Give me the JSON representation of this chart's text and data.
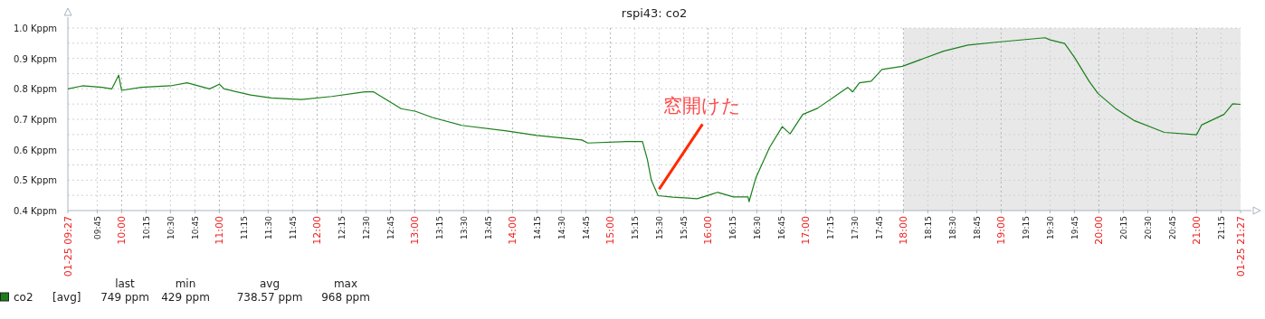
{
  "chart_data": {
    "type": "line",
    "title": "rspi43: co2",
    "x": [
      9.45,
      9.6,
      9.8,
      9.9,
      9.97,
      10.0,
      10.2,
      10.5,
      10.67,
      10.9,
      11.0,
      11.05,
      11.32,
      11.53,
      11.84,
      12.15,
      12.49,
      12.58,
      12.86,
      13.01,
      13.18,
      13.48,
      13.94,
      14.25,
      14.71,
      14.77,
      15.17,
      15.33,
      15.38,
      15.42,
      15.49,
      15.64,
      15.89,
      16.04,
      16.1,
      16.26,
      16.41,
      16.42,
      16.49,
      16.63,
      16.76,
      16.84,
      16.97,
      17.12,
      17.34,
      17.43,
      17.48,
      17.55,
      17.67,
      17.78,
      17.99,
      18.2,
      18.41,
      18.66,
      18.97,
      19.45,
      19.5,
      19.65,
      19.75,
      19.9,
      19.99,
      20.17,
      20.36,
      20.67,
      21.0,
      21.05,
      21.28,
      21.37,
      21.45
    ],
    "series": [
      {
        "name": "co2",
        "color": "#1a7f1a",
        "values": [
          0.8,
          0.81,
          0.805,
          0.8,
          0.845,
          0.795,
          0.805,
          0.81,
          0.82,
          0.8,
          0.815,
          0.8,
          0.78,
          0.77,
          0.765,
          0.775,
          0.79,
          0.79,
          0.735,
          0.726,
          0.706,
          0.68,
          0.662,
          0.647,
          0.632,
          0.622,
          0.627,
          0.627,
          0.568,
          0.5,
          0.449,
          0.444,
          0.439,
          0.454,
          0.46,
          0.445,
          0.445,
          0.429,
          0.508,
          0.607,
          0.676,
          0.652,
          0.716,
          0.736,
          0.785,
          0.805,
          0.79,
          0.82,
          0.825,
          0.864,
          0.874,
          0.899,
          0.924,
          0.944,
          0.954,
          0.968,
          0.961,
          0.949,
          0.904,
          0.825,
          0.785,
          0.736,
          0.696,
          0.657,
          0.649,
          0.681,
          0.716,
          0.751,
          0.749
        ]
      }
    ],
    "xlim": [
      9.45,
      21.45
    ],
    "xticks": [
      {
        "value": 9.45,
        "label": "01-25 09:27"
      },
      {
        "value": 9.75,
        "label": "09:45"
      },
      {
        "value": 10,
        "label": "10:00"
      },
      {
        "value": 10.25,
        "label": "10:15"
      },
      {
        "value": 10.5,
        "label": "10:30"
      },
      {
        "value": 10.75,
        "label": "10:45"
      },
      {
        "value": 11,
        "label": "11:00"
      },
      {
        "value": 11.25,
        "label": "11:15"
      },
      {
        "value": 11.5,
        "label": "11:30"
      },
      {
        "value": 11.75,
        "label": "11:45"
      },
      {
        "value": 12,
        "label": "12:00"
      },
      {
        "value": 12.25,
        "label": "12:15"
      },
      {
        "value": 12.5,
        "label": "12:30"
      },
      {
        "value": 12.75,
        "label": "12:45"
      },
      {
        "value": 13,
        "label": "13:00"
      },
      {
        "value": 13.25,
        "label": "13:15"
      },
      {
        "value": 13.5,
        "label": "13:30"
      },
      {
        "value": 13.75,
        "label": "13:45"
      },
      {
        "value": 14,
        "label": "14:00"
      },
      {
        "value": 14.25,
        "label": "14:15"
      },
      {
        "value": 14.5,
        "label": "14:30"
      },
      {
        "value": 14.75,
        "label": "14:45"
      },
      {
        "value": 15,
        "label": "15:00"
      },
      {
        "value": 15.25,
        "label": "15:15"
      },
      {
        "value": 15.5,
        "label": "15:30"
      },
      {
        "value": 15.75,
        "label": "15:45"
      },
      {
        "value": 16,
        "label": "16:00"
      },
      {
        "value": 16.25,
        "label": "16:15"
      },
      {
        "value": 16.5,
        "label": "16:30"
      },
      {
        "value": 16.75,
        "label": "16:45"
      },
      {
        "value": 17,
        "label": "17:00"
      },
      {
        "value": 17.25,
        "label": "17:15"
      },
      {
        "value": 17.5,
        "label": "17:30"
      },
      {
        "value": 17.75,
        "label": "17:45"
      },
      {
        "value": 18,
        "label": "18:00"
      },
      {
        "value": 18.25,
        "label": "18:15"
      },
      {
        "value": 18.5,
        "label": "18:30"
      },
      {
        "value": 18.75,
        "label": "18:45"
      },
      {
        "value": 19,
        "label": "19:00"
      },
      {
        "value": 19.25,
        "label": "19:15"
      },
      {
        "value": 19.5,
        "label": "19:30"
      },
      {
        "value": 19.75,
        "label": "19:45"
      },
      {
        "value": 20,
        "label": "20:00"
      },
      {
        "value": 20.25,
        "label": "20:15"
      },
      {
        "value": 20.5,
        "label": "20:30"
      },
      {
        "value": 20.75,
        "label": "20:45"
      },
      {
        "value": 21,
        "label": "21:00"
      },
      {
        "value": 21.25,
        "label": "21:15"
      },
      {
        "value": 21.45,
        "label": "01-25 21:27"
      }
    ],
    "ylim": [
      0.4,
      1.0
    ],
    "yticks": [
      {
        "value": 0.4,
        "label": "0.4 Kppm"
      },
      {
        "value": 0.45,
        "label": null
      },
      {
        "value": 0.5,
        "label": "0.5 Kppm"
      },
      {
        "value": 0.55,
        "label": null
      },
      {
        "value": 0.6,
        "label": "0.6 Kppm"
      },
      {
        "value": 0.65,
        "label": null
      },
      {
        "value": 0.7,
        "label": "0.7 Kppm"
      },
      {
        "value": 0.75,
        "label": null
      },
      {
        "value": 0.8,
        "label": "0.8 Kppm"
      },
      {
        "value": 0.85,
        "label": null
      },
      {
        "value": 0.9,
        "label": "0.9 Kppm"
      },
      {
        "value": 0.95,
        "label": null
      },
      {
        "value": 1.0,
        "label": "1.0 Kppm"
      }
    ],
    "bands": [
      {
        "axis": "x",
        "from": 18,
        "to": 21.45,
        "color": "#e8e8e8"
      }
    ],
    "grid": true,
    "legend": "bottom left",
    "annotations": [
      {
        "text": "窓開けた",
        "x": 15.5,
        "y": 0.47
      },
      "[avg]",
      "last",
      "min",
      "avg",
      "max",
      "749 ppm",
      "429 ppm",
      "738.57 ppm",
      "968 ppm"
    ]
  }
}
